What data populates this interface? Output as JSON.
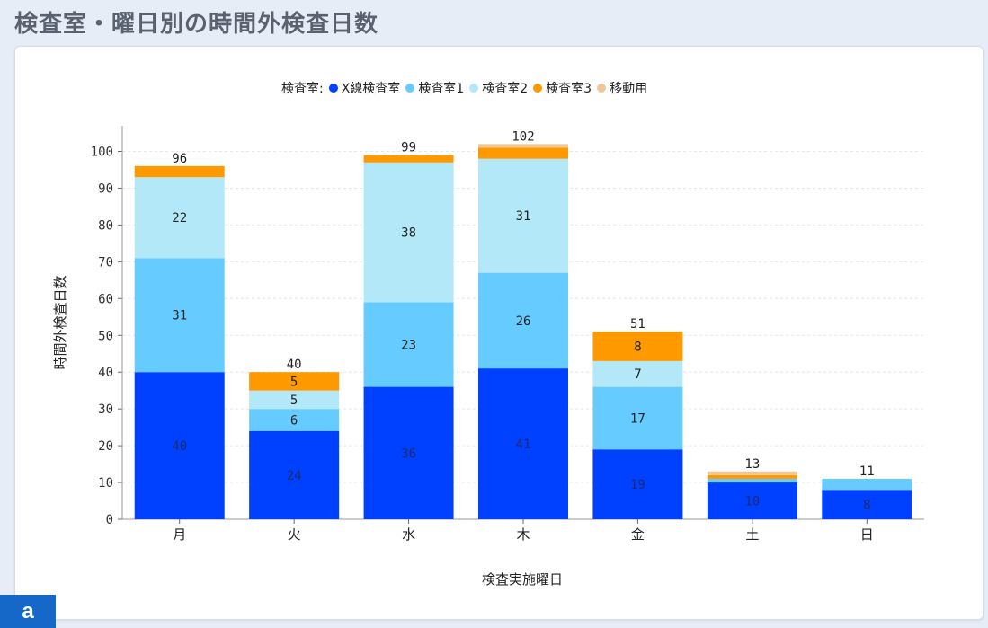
{
  "title": "検査室・曜日別の時間外検査日数",
  "badge": "a",
  "chart_data": {
    "type": "bar",
    "stacked": true,
    "legend_title": "検査室:",
    "legend_position": "top",
    "categories": [
      "月",
      "火",
      "水",
      "木",
      "金",
      "土",
      "日"
    ],
    "series": [
      {
        "name": "X線検査室",
        "color": "#0040ff",
        "values": [
          40,
          24,
          36,
          41,
          19,
          10,
          8
        ],
        "labels": [
          "40",
          "24",
          "36",
          "41",
          "19",
          "10",
          "8"
        ]
      },
      {
        "name": "検査室1",
        "color": "#66ccff",
        "values": [
          31,
          6,
          23,
          26,
          17,
          1,
          3
        ],
        "labels": [
          "31",
          "6",
          "23",
          "26",
          "17",
          "",
          ""
        ]
      },
      {
        "name": "検査室2",
        "color": "#b3e8f8",
        "values": [
          22,
          5,
          38,
          31,
          7,
          0,
          0
        ],
        "labels": [
          "22",
          "5",
          "38",
          "31",
          "7",
          "",
          ""
        ]
      },
      {
        "name": "検査室3",
        "color": "#ff9900",
        "values": [
          3,
          5,
          2,
          3,
          8,
          1,
          0
        ],
        "labels": [
          "",
          "5",
          "",
          "",
          "8",
          "",
          ""
        ]
      },
      {
        "name": "移動用",
        "color": "#f0c896",
        "values": [
          0,
          0,
          0,
          1,
          0,
          1,
          0
        ],
        "labels": [
          "",
          "",
          "",
          "",
          "",
          "",
          ""
        ]
      }
    ],
    "totals": [
      "96",
      "40",
      "99",
      "102",
      "51",
      "13",
      "11"
    ],
    "xlabel": "検査実施曜日",
    "ylabel": "時間外検査日数",
    "ylim": [
      0,
      105
    ],
    "yticks": [
      0,
      10,
      20,
      30,
      40,
      50,
      60,
      70,
      80,
      90,
      100
    ],
    "grid": true
  }
}
